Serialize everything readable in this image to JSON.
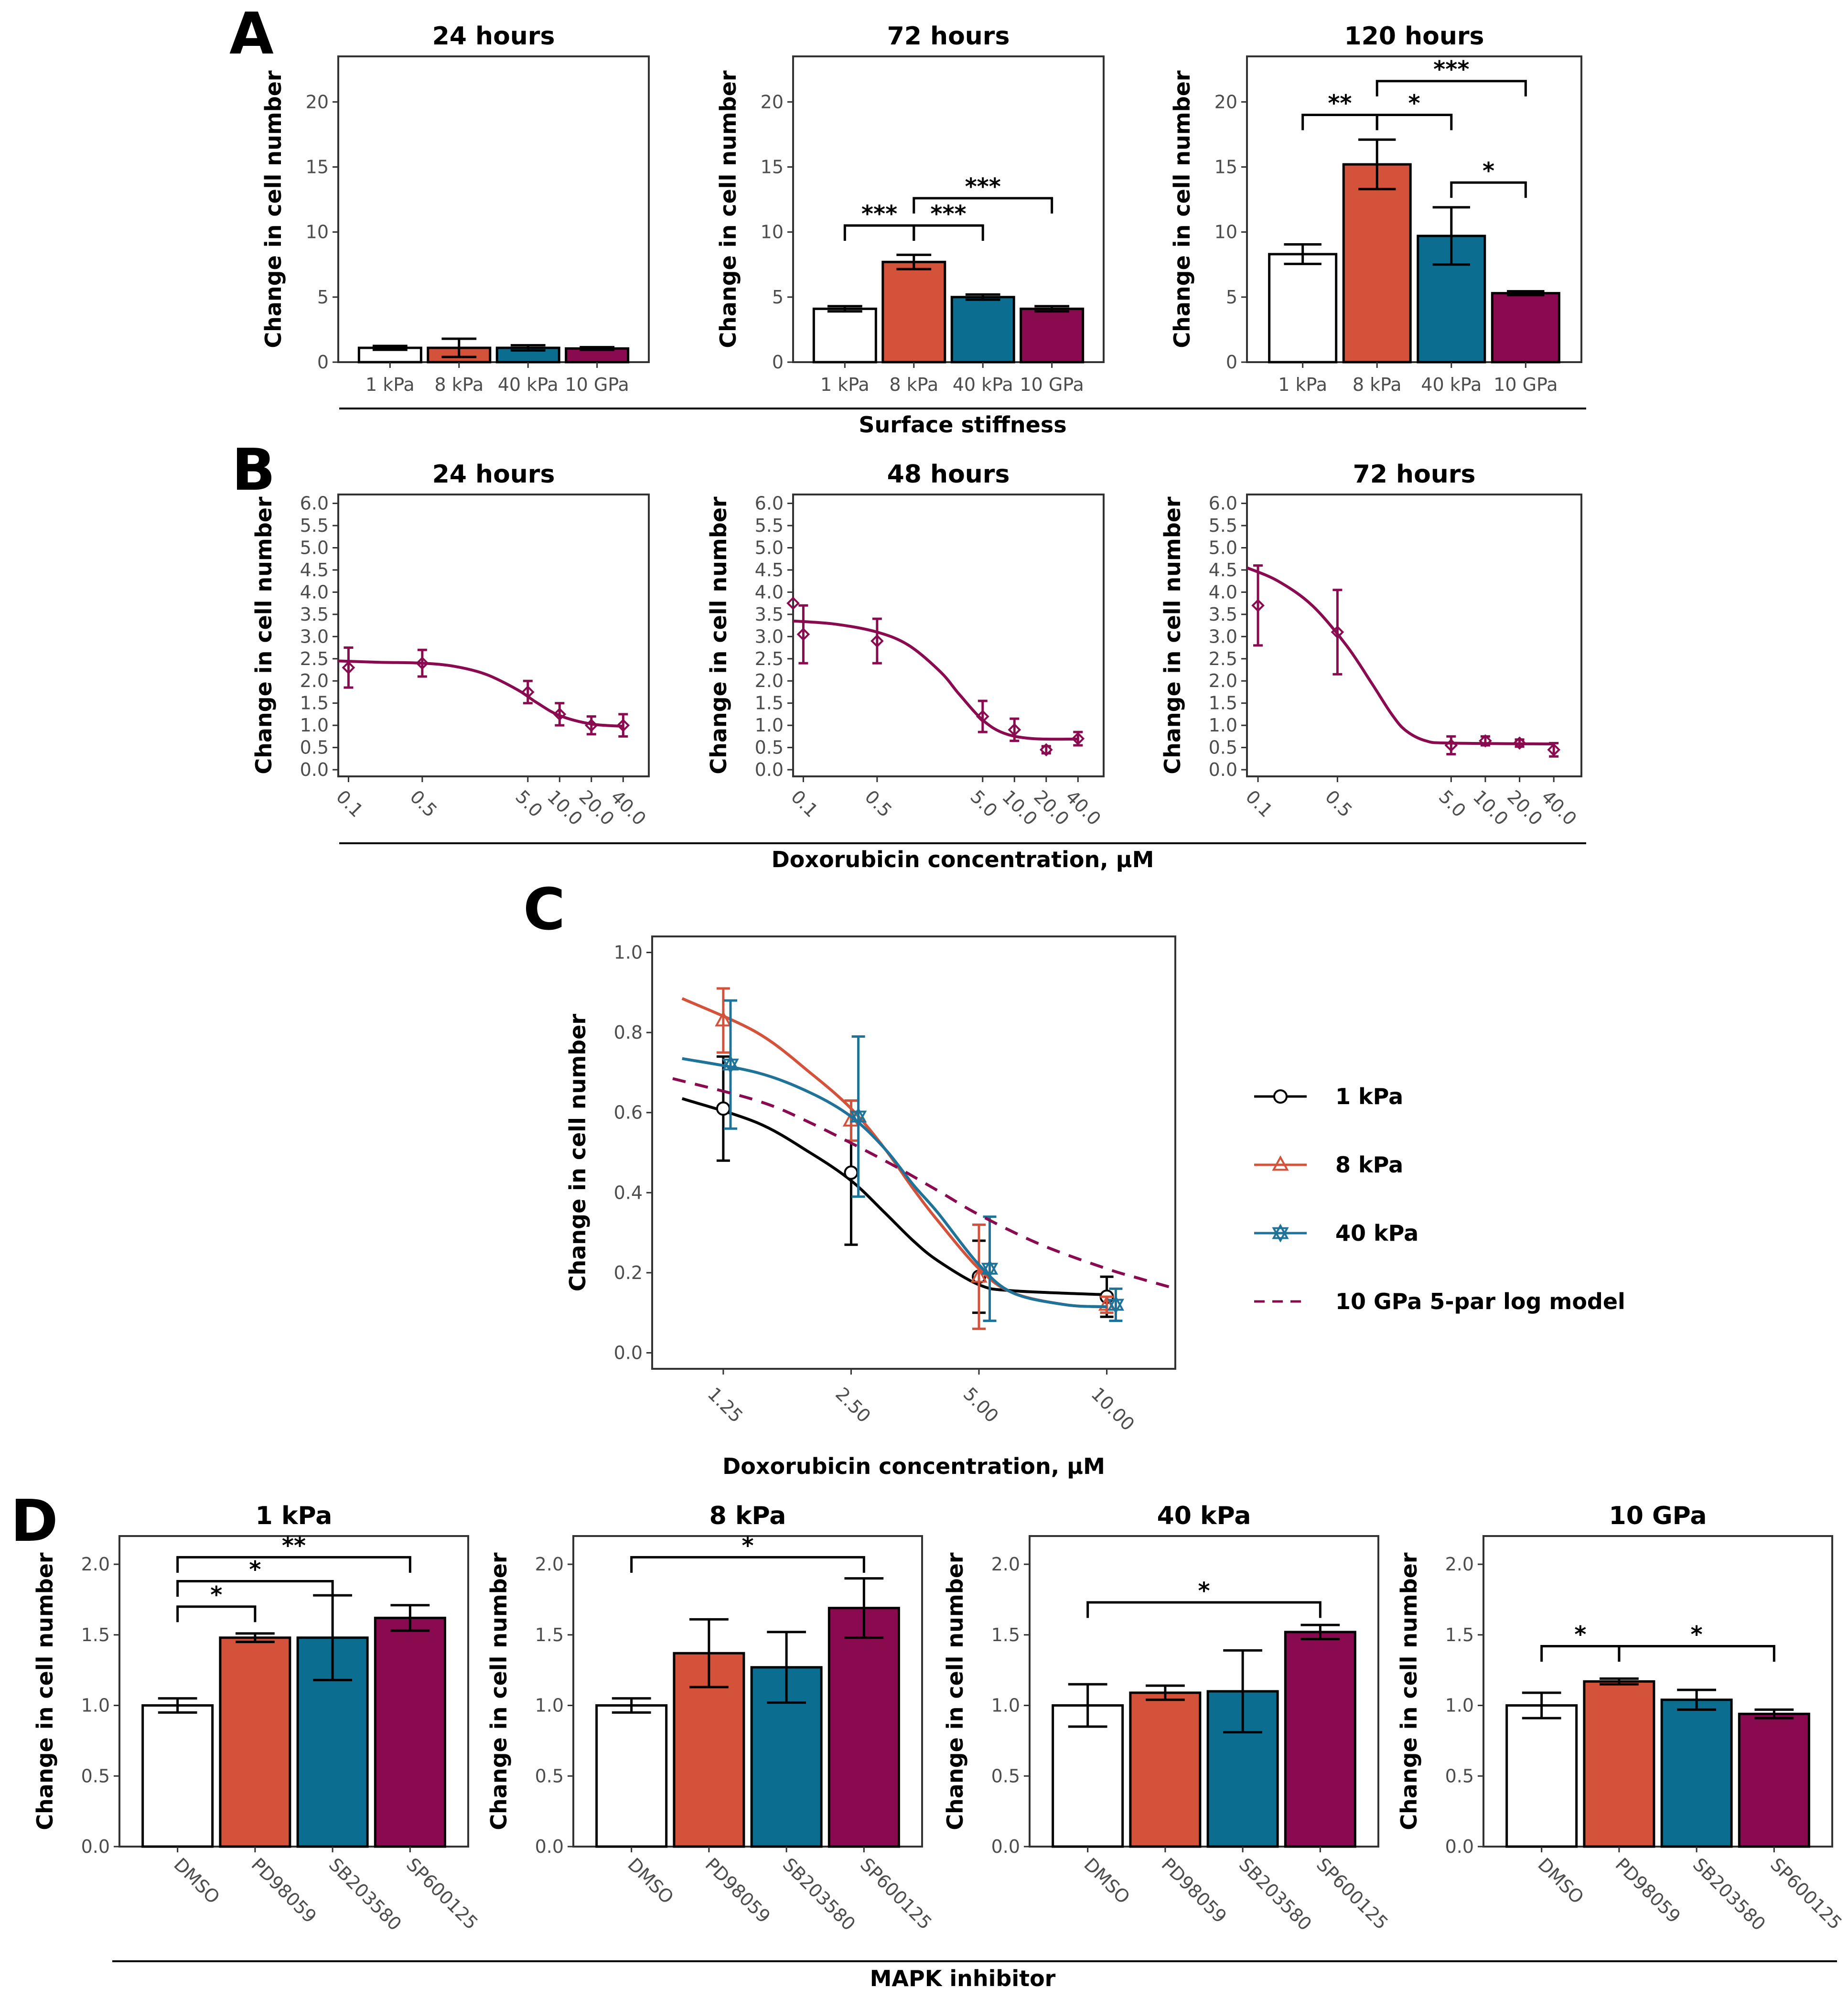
{
  "colors": {
    "1 kPa": "#ffffff",
    "8 kPa": "#d4513a",
    "40 kPa": "#0b6e91",
    "10 GPa": "#8a0a4f",
    "line_1kPa": "#000000",
    "line_8kPa": "#d4513a",
    "line_40kPa": "#1f7399",
    "line_10GPa": "#8a0a4f"
  },
  "panels": {
    "A": {
      "label": "A",
      "group_xlabel": "Surface stiffness"
    },
    "B": {
      "label": "B",
      "group_xlabel": "Doxorubicin concentration, μM"
    },
    "C": {
      "label": "C"
    },
    "D": {
      "label": "D",
      "group_xlabel": "MAPK inhibitor"
    }
  },
  "chart_data": [
    {
      "id": "A1",
      "type": "bar",
      "title": "24 hours",
      "ylabel": "Change in cell number",
      "xlabel": "Surface stiffness",
      "ylim": [
        0,
        23.5
      ],
      "yticks": [
        0,
        5,
        10,
        15,
        20
      ],
      "categories": [
        "1 kPa",
        "8 kPa",
        "40 kPa",
        "10 GPa"
      ],
      "values": [
        1.1,
        1.1,
        1.1,
        1.05
      ],
      "errors": [
        0.15,
        0.7,
        0.2,
        0.1
      ],
      "significance": []
    },
    {
      "id": "A2",
      "type": "bar",
      "title": "72 hours",
      "ylabel": "Change in cell number",
      "xlabel": "Surface stiffness",
      "ylim": [
        0,
        23.5
      ],
      "yticks": [
        0,
        5,
        10,
        15,
        20
      ],
      "categories": [
        "1 kPa",
        "8 kPa",
        "40 kPa",
        "10 GPa"
      ],
      "values": [
        4.1,
        7.7,
        5.0,
        4.1
      ],
      "errors": [
        0.2,
        0.55,
        0.2,
        0.2
      ],
      "significance": [
        {
          "from": 0,
          "to": 1,
          "y": 10.5,
          "label": "***"
        },
        {
          "from": 1,
          "to": 2,
          "y": 10.5,
          "label": "***"
        },
        {
          "from": 1,
          "to": 3,
          "y": 12.6,
          "label": "***"
        }
      ]
    },
    {
      "id": "A3",
      "type": "bar",
      "title": "120 hours",
      "ylabel": "Change in cell number",
      "xlabel": "Surface stiffness",
      "ylim": [
        0,
        23.5
      ],
      "yticks": [
        0,
        5,
        10,
        15,
        20
      ],
      "categories": [
        "1 kPa",
        "8 kPa",
        "40 kPa",
        "10 GPa"
      ],
      "values": [
        8.3,
        15.2,
        9.7,
        5.3
      ],
      "errors": [
        0.75,
        1.9,
        2.2,
        0.15
      ],
      "significance": [
        {
          "from": 0,
          "to": 1,
          "y": 19.0,
          "label": "**"
        },
        {
          "from": 1,
          "to": 2,
          "y": 19.0,
          "label": "*"
        },
        {
          "from": 1,
          "to": 3,
          "y": 21.6,
          "label": "***"
        },
        {
          "from": 2,
          "to": 3,
          "y": 13.8,
          "label": "*"
        }
      ]
    },
    {
      "id": "B1",
      "type": "scatter",
      "title": "24 hours",
      "ylabel": "Change in cell number",
      "xlabel": "Doxorubicin concentration, μM",
      "xscale": "log",
      "xlim": [
        0.08,
        70
      ],
      "ylim": [
        -0.15,
        6.2
      ],
      "yticks": [
        0.0,
        0.5,
        1.0,
        1.5,
        2.0,
        2.5,
        3.0,
        3.5,
        4.0,
        4.5,
        5.0,
        5.5,
        6.0
      ],
      "xticks": [
        0.1,
        0.5,
        5.0,
        10.0,
        20.0,
        40.0
      ],
      "x": [
        0.1,
        0.5,
        5.0,
        10.0,
        20.0,
        40.0
      ],
      "y": [
        2.3,
        2.4,
        1.75,
        1.25,
        1.0,
        1.0
      ],
      "errors": [
        0.45,
        0.3,
        0.25,
        0.25,
        0.2,
        0.25
      ],
      "fit": [
        [
          0.08,
          2.45
        ],
        [
          0.2,
          2.42
        ],
        [
          0.5,
          2.4
        ],
        [
          1.0,
          2.33
        ],
        [
          2.0,
          2.15
        ],
        [
          4.0,
          1.8
        ],
        [
          6.0,
          1.52
        ],
        [
          10.0,
          1.22
        ],
        [
          20.0,
          1.03
        ],
        [
          40.0,
          0.98
        ]
      ]
    },
    {
      "id": "B2",
      "type": "scatter",
      "title": "48 hours",
      "ylabel": "Change in cell number",
      "xlabel": "Doxorubicin concentration, μM",
      "xscale": "log",
      "xlim": [
        0.08,
        70
      ],
      "ylim": [
        -0.15,
        6.2
      ],
      "yticks": [
        0.0,
        0.5,
        1.0,
        1.5,
        2.0,
        2.5,
        3.0,
        3.5,
        4.0,
        4.5,
        5.0,
        5.5,
        6.0
      ],
      "xticks": [
        0.1,
        0.5,
        5.0,
        10.0,
        20.0,
        40.0
      ],
      "x": [
        0.08,
        0.1,
        0.5,
        5.0,
        10.0,
        20.0,
        40.0
      ],
      "y": [
        3.75,
        3.05,
        2.9,
        1.2,
        0.9,
        0.45,
        0.7
      ],
      "errors": [
        0.0,
        0.65,
        0.5,
        0.35,
        0.25,
        0.08,
        0.15
      ],
      "fit": [
        [
          0.08,
          3.35
        ],
        [
          0.2,
          3.28
        ],
        [
          0.5,
          3.1
        ],
        [
          1.0,
          2.8
        ],
        [
          2.0,
          2.2
        ],
        [
          3.0,
          1.7
        ],
        [
          5.0,
          1.12
        ],
        [
          8.0,
          0.82
        ],
        [
          15.0,
          0.7
        ],
        [
          40.0,
          0.69
        ]
      ]
    },
    {
      "id": "B3",
      "type": "scatter",
      "title": "72 hours",
      "ylabel": "Change in cell number",
      "xlabel": "Doxorubicin concentration, μM",
      "xscale": "log",
      "xlim": [
        0.08,
        70
      ],
      "ylim": [
        -0.15,
        6.2
      ],
      "yticks": [
        0.0,
        0.5,
        1.0,
        1.5,
        2.0,
        2.5,
        3.0,
        3.5,
        4.0,
        4.5,
        5.0,
        5.5,
        6.0
      ],
      "xticks": [
        0.1,
        0.5,
        5.0,
        10.0,
        20.0,
        40.0
      ],
      "x": [
        0.1,
        0.5,
        5.0,
        10.0,
        20.0,
        40.0
      ],
      "y": [
        3.7,
        3.1,
        0.55,
        0.65,
        0.6,
        0.45
      ],
      "errors": [
        0.9,
        0.95,
        0.2,
        0.1,
        0.08,
        0.15
      ],
      "fit": [
        [
          0.08,
          4.55
        ],
        [
          0.15,
          4.25
        ],
        [
          0.3,
          3.7
        ],
        [
          0.6,
          2.8
        ],
        [
          1.0,
          1.95
        ],
        [
          1.5,
          1.25
        ],
        [
          2.0,
          0.88
        ],
        [
          3.0,
          0.65
        ],
        [
          5.0,
          0.6
        ],
        [
          40.0,
          0.58
        ]
      ]
    },
    {
      "id": "C",
      "type": "line",
      "ylabel": "Change in cell number",
      "xlabel": "Doxorubicin concentration, μM",
      "xscale": "log",
      "xlim": [
        0.85,
        14.5
      ],
      "ylim": [
        -0.04,
        1.04
      ],
      "yticks": [
        0.0,
        0.2,
        0.4,
        0.6,
        0.8,
        1.0
      ],
      "xticks": [
        1.25,
        2.5,
        5.0,
        10.0
      ],
      "xtick_labels": [
        "1.25",
        "2.50",
        "5.00",
        "10.00"
      ],
      "series": [
        {
          "name": "1 kPa",
          "marker": "circle",
          "x": [
            1.25,
            2.5,
            5.0,
            10.0
          ],
          "y": [
            0.61,
            0.45,
            0.19,
            0.14
          ],
          "errors": [
            0.13,
            0.18,
            0.09,
            0.05
          ],
          "fit": [
            [
              1.0,
              0.635
            ],
            [
              1.5,
              0.575
            ],
            [
              2.0,
              0.5
            ],
            [
              2.5,
              0.43
            ],
            [
              3.0,
              0.35
            ],
            [
              3.5,
              0.28
            ],
            [
              4.0,
              0.23
            ],
            [
              5.0,
              0.17
            ],
            [
              6.0,
              0.155
            ],
            [
              10.0,
              0.145
            ]
          ]
        },
        {
          "name": "8 kPa",
          "marker": "triangle",
          "x": [
            1.25,
            2.5,
            5.0,
            10.0
          ],
          "y": [
            0.83,
            0.58,
            0.19,
            0.12
          ],
          "errors": [
            0.08,
            0.05,
            0.13,
            0.02
          ],
          "fit": [
            [
              1.0,
              0.885
            ],
            [
              1.5,
              0.8
            ],
            [
              2.0,
              0.7
            ],
            [
              2.5,
              0.61
            ],
            [
              3.0,
              0.51
            ],
            [
              3.5,
              0.41
            ],
            [
              4.0,
              0.33
            ],
            [
              5.0,
              0.21
            ],
            [
              6.0,
              0.15
            ],
            [
              8.0,
              0.12
            ],
            [
              10.0,
              0.115
            ]
          ]
        },
        {
          "name": "40 kPa",
          "marker": "star",
          "x": [
            1.3,
            2.6,
            5.3,
            10.5
          ],
          "y": [
            0.72,
            0.59,
            0.21,
            0.12
          ],
          "errors": [
            0.16,
            0.2,
            0.13,
            0.04
          ],
          "fit": [
            [
              1.0,
              0.735
            ],
            [
              1.5,
              0.7
            ],
            [
              2.0,
              0.65
            ],
            [
              2.5,
              0.59
            ],
            [
              3.0,
              0.51
            ],
            [
              3.5,
              0.42
            ],
            [
              4.0,
              0.35
            ],
            [
              5.0,
              0.22
            ],
            [
              6.0,
              0.15
            ],
            [
              8.0,
              0.12
            ],
            [
              10.0,
              0.115
            ]
          ]
        },
        {
          "name": "10 GPa 5-par log model",
          "marker": "none",
          "dashed": true,
          "x": [],
          "y": [],
          "errors": [],
          "fit": [
            [
              0.95,
              0.685
            ],
            [
              1.5,
              0.63
            ],
            [
              2.0,
              0.575
            ],
            [
              3.0,
              0.48
            ],
            [
              4.0,
              0.405
            ],
            [
              5.0,
              0.345
            ],
            [
              7.0,
              0.27
            ],
            [
              10.0,
              0.21
            ],
            [
              12.0,
              0.185
            ],
            [
              14.0,
              0.165
            ]
          ]
        }
      ]
    },
    {
      "id": "D1",
      "type": "bar",
      "title": "1 kPa",
      "ylabel": "Change in cell number",
      "xlabel": "MAPK inhibitor",
      "ylim": [
        0,
        2.2
      ],
      "yticks": [
        0.0,
        0.5,
        1.0,
        1.5,
        2.0
      ],
      "categories": [
        "DMSO",
        "PD98059",
        "SB203580",
        "SP600125"
      ],
      "values": [
        1.0,
        1.48,
        1.48,
        1.62
      ],
      "errors": [
        0.05,
        0.03,
        0.3,
        0.09
      ],
      "significance": [
        {
          "from": 0,
          "to": 1,
          "y": 1.7,
          "label": "*"
        },
        {
          "from": 0,
          "to": 2,
          "y": 1.88,
          "label": "*"
        },
        {
          "from": 0,
          "to": 3,
          "y": 2.05,
          "label": "**"
        }
      ]
    },
    {
      "id": "D2",
      "type": "bar",
      "title": "8 kPa",
      "ylabel": "Change in cell number",
      "xlabel": "MAPK inhibitor",
      "ylim": [
        0,
        2.2
      ],
      "yticks": [
        0.0,
        0.5,
        1.0,
        1.5,
        2.0
      ],
      "categories": [
        "DMSO",
        "PD98059",
        "SB203580",
        "SP600125"
      ],
      "values": [
        1.0,
        1.37,
        1.27,
        1.69
      ],
      "errors": [
        0.05,
        0.24,
        0.25,
        0.21
      ],
      "significance": [
        {
          "from": 0,
          "to": 3,
          "y": 2.05,
          "label": "*"
        }
      ]
    },
    {
      "id": "D3",
      "type": "bar",
      "title": "40 kPa",
      "ylabel": "Change in cell number",
      "xlabel": "MAPK inhibitor",
      "ylim": [
        0,
        2.2
      ],
      "yticks": [
        0.0,
        0.5,
        1.0,
        1.5,
        2.0
      ],
      "categories": [
        "DMSO",
        "PD98059",
        "SB203580",
        "SP600125"
      ],
      "values": [
        1.0,
        1.09,
        1.1,
        1.52
      ],
      "errors": [
        0.15,
        0.05,
        0.29,
        0.05
      ],
      "significance": [
        {
          "from": 0,
          "to": 3,
          "y": 1.73,
          "label": "*"
        }
      ]
    },
    {
      "id": "D4",
      "type": "bar",
      "title": "10 GPa",
      "ylabel": "Change in cell number",
      "xlabel": "MAPK inhibitor",
      "ylim": [
        0,
        2.2
      ],
      "yticks": [
        0.0,
        0.5,
        1.0,
        1.5,
        2.0
      ],
      "categories": [
        "DMSO",
        "PD98059",
        "SB203580",
        "SP600125"
      ],
      "values": [
        1.0,
        1.17,
        1.04,
        0.94
      ],
      "errors": [
        0.09,
        0.02,
        0.07,
        0.03
      ],
      "significance": [
        {
          "from": 0,
          "to": 1,
          "y": 1.42,
          "label": "*"
        },
        {
          "from": 1,
          "to": 3,
          "y": 1.42,
          "label": "*"
        }
      ]
    }
  ]
}
